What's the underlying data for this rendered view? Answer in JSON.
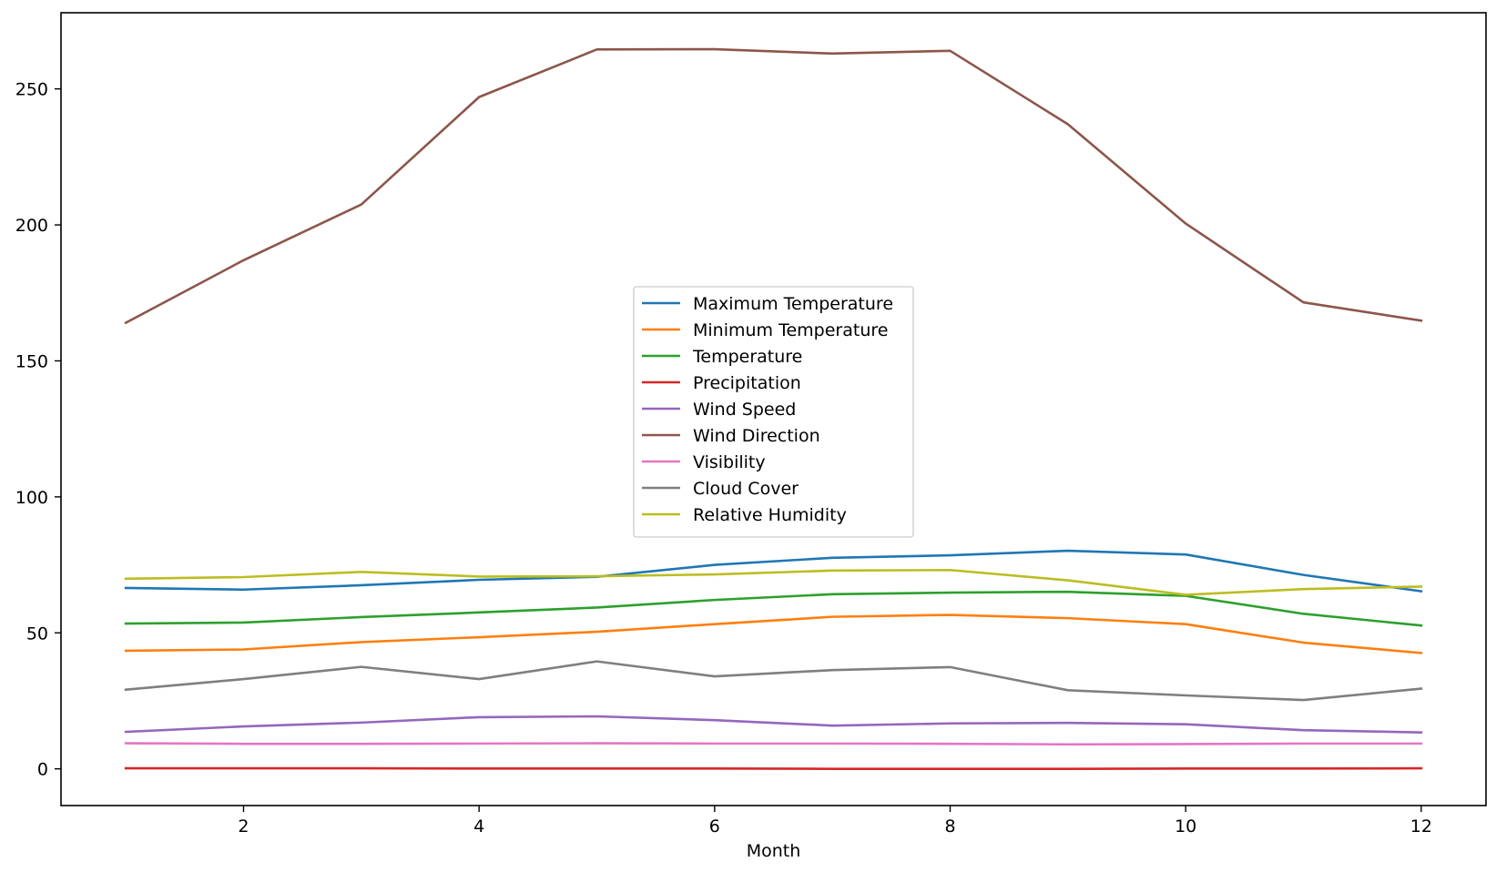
{
  "chart_data": {
    "type": "line",
    "title": "",
    "xlabel": "Month",
    "ylabel": "",
    "xlim": [
      0.45,
      12.55
    ],
    "ylim": [
      -13.5,
      278
    ],
    "xticks": [
      2,
      4,
      6,
      8,
      10,
      12
    ],
    "yticks": [
      0,
      50,
      100,
      150,
      200,
      250
    ],
    "grid": false,
    "legend_position": "center",
    "x": [
      1,
      2,
      3,
      4,
      5,
      6,
      7,
      8,
      9,
      10,
      11,
      12
    ],
    "series": [
      {
        "name": "Maximum Temperature",
        "color": "#1f77b4",
        "values": [
          66.5,
          65.9,
          67.5,
          69.5,
          70.6,
          75.0,
          77.6,
          78.5,
          80.2,
          78.8,
          71.3,
          65.3
        ]
      },
      {
        "name": "Minimum Temperature",
        "color": "#ff7f0e",
        "values": [
          43.4,
          43.9,
          46.6,
          48.4,
          50.4,
          53.2,
          55.9,
          56.6,
          55.4,
          53.2,
          46.4,
          42.6
        ]
      },
      {
        "name": "Temperature",
        "color": "#2ca02c",
        "values": [
          53.4,
          53.8,
          55.8,
          57.5,
          59.3,
          62.1,
          64.2,
          64.8,
          65.1,
          63.6,
          57.0,
          52.7
        ]
      },
      {
        "name": "Precipitation",
        "color": "#d62728",
        "values": [
          0.2,
          0.2,
          0.2,
          0.1,
          0.1,
          0.1,
          0.0,
          0.0,
          0.0,
          0.1,
          0.1,
          0.2
        ]
      },
      {
        "name": "Wind Speed",
        "color": "#9467bd",
        "values": [
          13.6,
          15.6,
          17.0,
          19.0,
          19.3,
          17.9,
          15.9,
          16.7,
          16.9,
          16.4,
          14.2,
          13.4
        ]
      },
      {
        "name": "Wind Direction",
        "color": "#8c564b",
        "values": [
          164.0,
          187.0,
          207.5,
          247.0,
          264.5,
          264.6,
          263.0,
          264.0,
          237.0,
          200.5,
          171.5,
          164.8
        ]
      },
      {
        "name": "Visibility",
        "color": "#e377c2",
        "values": [
          9.4,
          9.2,
          9.2,
          9.3,
          9.4,
          9.3,
          9.3,
          9.2,
          9.0,
          9.1,
          9.3,
          9.3
        ]
      },
      {
        "name": "Cloud Cover",
        "color": "#7f7f7f",
        "values": [
          29.1,
          33.0,
          37.5,
          33.0,
          39.5,
          34.0,
          36.3,
          37.4,
          28.9,
          27.0,
          25.3,
          29.5
        ]
      },
      {
        "name": "Relative Humidity",
        "color": "#bcbd22",
        "values": [
          69.9,
          70.5,
          72.4,
          70.7,
          70.8,
          71.5,
          72.9,
          73.1,
          69.3,
          64.0,
          66.1,
          67.0
        ]
      }
    ]
  }
}
